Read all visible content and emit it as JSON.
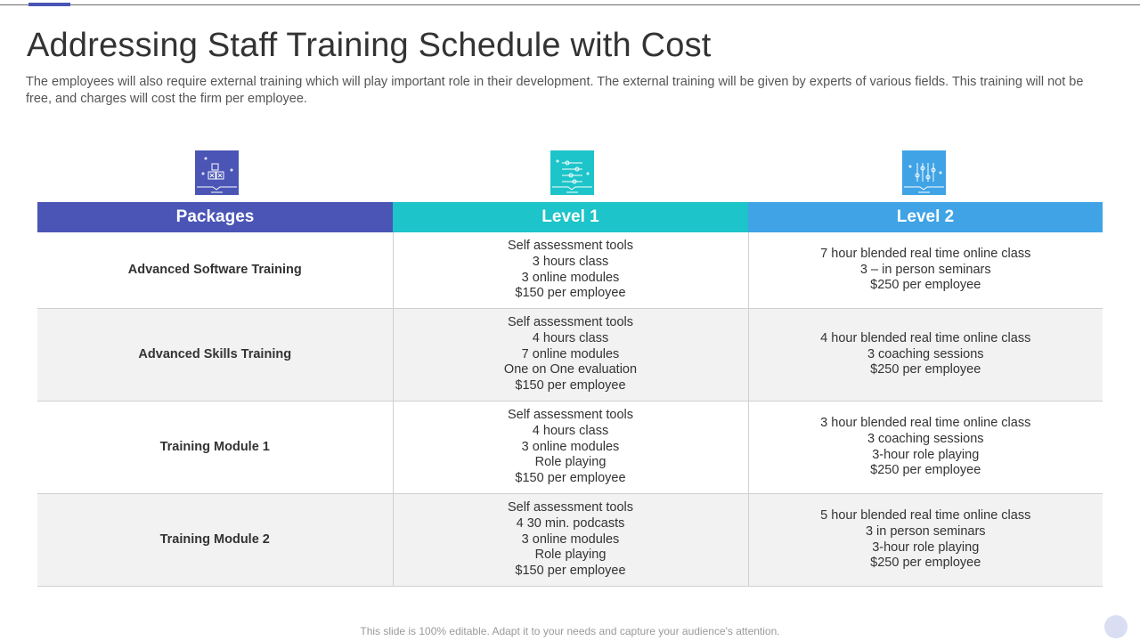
{
  "title": "Addressing Staff Training Schedule with Cost",
  "subtitle": "The employees will also require external training which will play important role in their development. The external training will be given by experts of various fields. This training will not be free, and charges will cost the firm per employee.",
  "icons": [
    "boxes-icon",
    "sliders-horizontal-icon",
    "sliders-vertical-icon"
  ],
  "colors": {
    "packages": "#4a55b5",
    "level1": "#1dc4c9",
    "level2": "#3fa3e6"
  },
  "table": {
    "headers": [
      "Packages",
      "Level 1",
      "Level 2"
    ],
    "rows": [
      {
        "package": "Advanced Software Training",
        "level1": [
          "Self assessment tools",
          "3 hours class",
          "3 online modules",
          "$150 per employee"
        ],
        "level2": [
          "7 hour blended real time online class",
          "3 – in person seminars",
          "$250 per employee"
        ]
      },
      {
        "package": "Advanced Skills Training",
        "level1": [
          "Self assessment tools",
          "4 hours class",
          "7 online modules",
          "One on One evaluation",
          "$150 per employee"
        ],
        "level2": [
          "4 hour blended real time online class",
          "3 coaching sessions",
          "$250 per employee"
        ]
      },
      {
        "package": "Training Module 1",
        "level1": [
          "Self assessment tools",
          "4 hours class",
          "3 online modules",
          "Role playing",
          "$150 per employee"
        ],
        "level2": [
          "3 hour blended real time online class",
          "3 coaching sessions",
          "3-hour role playing",
          "$250 per employee"
        ]
      },
      {
        "package": "Training Module 2",
        "level1": [
          "Self assessment tools",
          "4  30 min. podcasts",
          "3 online modules",
          "Role playing",
          "$150 per employee"
        ],
        "level2": [
          "5 hour blended real time online class",
          "3 in person seminars",
          "3-hour role playing",
          "$250 per employee"
        ]
      }
    ]
  },
  "footer": "This slide is 100% editable. Adapt it to your needs and capture your audience's attention."
}
